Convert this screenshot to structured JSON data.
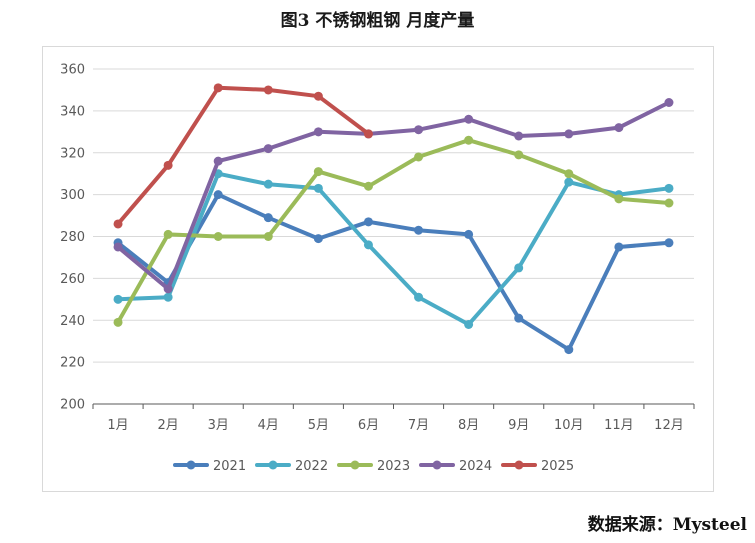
{
  "title": "图3 不锈钢粗钢 月度产量",
  "source": "数据来源：Mysteel",
  "chart_data": {
    "type": "line",
    "title": "图3 不锈钢粗钢 月度产量",
    "xlabel": "",
    "ylabel": "",
    "categories": [
      "1月",
      "2月",
      "3月",
      "4月",
      "5月",
      "6月",
      "7月",
      "8月",
      "9月",
      "10月",
      "11月",
      "12月"
    ],
    "ylim": [
      200,
      360
    ],
    "yticks": [
      200,
      220,
      240,
      260,
      280,
      300,
      320,
      340,
      360
    ],
    "grid": true,
    "legend_position": "bottom",
    "series": [
      {
        "name": "2021",
        "color": "#4a7ebb",
        "values": [
          277,
          258,
          300,
          289,
          279,
          287,
          283,
          281,
          241,
          226,
          275,
          277
        ]
      },
      {
        "name": "2022",
        "color": "#4bacc6",
        "values": [
          250,
          251,
          310,
          305,
          303,
          276,
          251,
          238,
          265,
          306,
          300,
          303
        ]
      },
      {
        "name": "2023",
        "color": "#9bbb59",
        "values": [
          239,
          281,
          280,
          280,
          311,
          304,
          318,
          326,
          319,
          310,
          298,
          296
        ]
      },
      {
        "name": "2024",
        "color": "#8064a2",
        "values": [
          275,
          255,
          316,
          322,
          330,
          329,
          331,
          336,
          328,
          329,
          332,
          344
        ]
      },
      {
        "name": "2025",
        "color": "#c0504d",
        "values": [
          286,
          314,
          351,
          350,
          347,
          329,
          null,
          null,
          null,
          null,
          null,
          null
        ]
      }
    ]
  }
}
